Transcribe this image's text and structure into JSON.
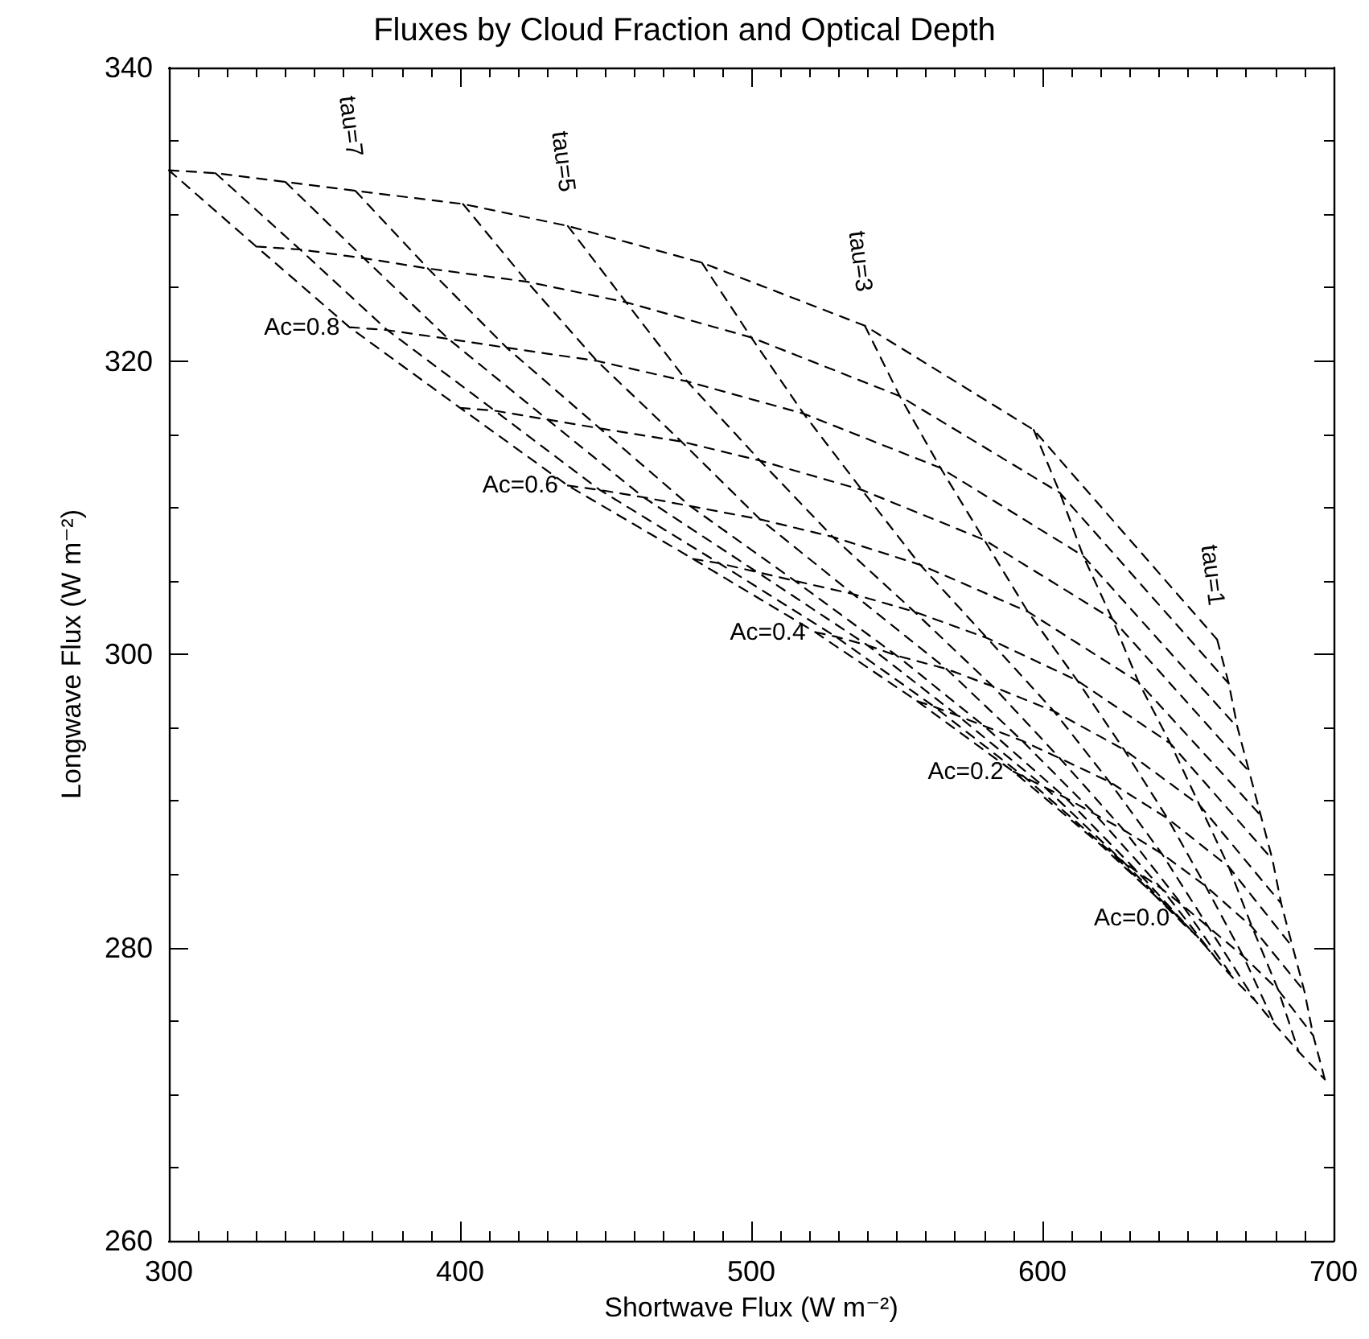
{
  "chart_data": {
    "type": "line",
    "title": "Fluxes by Cloud Fraction and Optical Depth",
    "xlabel": "Shortwave Flux (W m⁻²)",
    "ylabel": "Longwave Flux (W m⁻²)",
    "xlim": [
      300,
      700
    ],
    "xticks": [
      300,
      400,
      500,
      600,
      700
    ],
    "ylim": [
      260,
      340
    ],
    "yticks": [
      260,
      280,
      300,
      320,
      340
    ],
    "grid": false,
    "marker": "none",
    "line_style": "dashed",
    "annotations": [
      "tau=7",
      "tau=5",
      "tau=3",
      "tau=1",
      "Ac=0.8",
      "Ac=0.6",
      "Ac=0.4",
      "Ac=0.2",
      "Ac=0.0"
    ],
    "series": [
      {
        "color": "#000000",
        "x": [
          300,
          316,
          340,
          364,
          401,
          437,
          483,
          539,
          597,
          660,
          null,
          330,
          345,
          367,
          389,
          423,
          457,
          500,
          551,
          606,
          664,
          null,
          362,
          375,
          396,
          416,
          447,
          478,
          518,
          565,
          614,
          667,
          null,
          400,
          412,
          430,
          448,
          476,
          503,
          538,
          580,
          624,
          671,
          null,
          437,
          448,
          463,
          479,
          503,
          528,
          558,
          595,
          633,
          675,
          null,
          480,
          489,
          502,
          515,
          535,
          556,
          581,
          612,
          644,
          679,
          null,
          522,
          529,
          540,
          550,
          567,
          583,
          604,
          628,
          654,
          682,
          null,
          557,
          563,
          571,
          580,
          593,
          606,
          623,
          643,
          664,
          686,
          null,
          590,
          594,
          601,
          608,
          618,
          628,
          641,
          656,
          672,
          690,
          null,
          620,
          623,
          628,
          633,
          641,
          648,
          657,
          669,
          681,
          693,
          null,
          647,
          649,
          653,
          656,
          661,
          666,
          673,
          680,
          688,
          697,
          null,
          300,
          330,
          362,
          400,
          437,
          480,
          522,
          557,
          590,
          620,
          647,
          null,
          316,
          345,
          375,
          412,
          448,
          489,
          529,
          563,
          594,
          623,
          649,
          null,
          340,
          367,
          396,
          430,
          463,
          502,
          540,
          571,
          601,
          628,
          653,
          null,
          364,
          389,
          416,
          448,
          479,
          515,
          550,
          580,
          608,
          633,
          656,
          null,
          401,
          423,
          447,
          476,
          503,
          535,
          567,
          593,
          618,
          641,
          661,
          null,
          437,
          457,
          478,
          503,
          528,
          556,
          583,
          606,
          628,
          648,
          666,
          null,
          483,
          500,
          518,
          538,
          558,
          581,
          604,
          623,
          641,
          657,
          673,
          null,
          539,
          551,
          565,
          580,
          595,
          612,
          628,
          643,
          656,
          669,
          680,
          null,
          597,
          606,
          614,
          624,
          633,
          644,
          654,
          664,
          672,
          681,
          688,
          null,
          660,
          664,
          667,
          671,
          675,
          679,
          682,
          686,
          690,
          693,
          697
        ],
        "values": [
          333,
          332.8,
          332.2,
          331.6,
          330.7,
          329.2,
          326.7,
          322.4,
          315.3,
          301,
          null,
          327.8,
          327.6,
          327,
          326.3,
          325.4,
          324,
          321.6,
          317.6,
          311,
          298,
          null,
          322.3,
          322.1,
          321.5,
          320.9,
          320,
          318.6,
          316.4,
          312.7,
          306.7,
          295,
          null,
          316.8,
          316.6,
          316,
          315.4,
          314.5,
          313.2,
          311.2,
          307.8,
          302.4,
          292,
          null,
          311.5,
          311.2,
          310.7,
          310.1,
          309.2,
          308,
          306.1,
          302.9,
          298.1,
          289,
          null,
          306.5,
          306.2,
          305.6,
          305,
          304.1,
          302.9,
          301.1,
          298.2,
          293.9,
          286,
          null,
          301.5,
          301.2,
          300.6,
          299.9,
          299,
          297.8,
          296.1,
          293.5,
          289.7,
          283,
          null,
          296.8,
          296.4,
          295.8,
          295.1,
          294.1,
          292.9,
          291.3,
          288.8,
          285.5,
          280,
          null,
          292,
          291.6,
          290.9,
          290.2,
          289.1,
          288,
          286.4,
          284.2,
          281.4,
          277,
          null,
          287,
          286.6,
          285.8,
          285.1,
          284,
          282.9,
          281.4,
          279.4,
          277.1,
          274,
          null,
          282,
          281.5,
          280.8,
          280.1,
          278.9,
          277.8,
          276.4,
          274.7,
          272.9,
          271,
          null,
          333,
          327.8,
          322.3,
          316.8,
          311.5,
          306.5,
          301.5,
          296.8,
          292,
          287,
          282,
          null,
          332.8,
          327.6,
          322.1,
          316.6,
          311.2,
          306.2,
          301.2,
          296.4,
          291.6,
          286.6,
          281.5,
          null,
          332.2,
          327,
          321.5,
          316,
          310.7,
          305.6,
          300.6,
          295.8,
          290.9,
          285.8,
          280.8,
          null,
          331.6,
          326.3,
          320.9,
          315.4,
          310.1,
          305,
          299.9,
          295.1,
          290.2,
          285.1,
          280.1,
          null,
          330.7,
          325.4,
          320,
          314.5,
          309.2,
          304.1,
          299,
          294.1,
          289.1,
          284,
          278.9,
          null,
          329.2,
          324,
          318.6,
          313.2,
          308,
          302.9,
          297.8,
          292.9,
          288,
          282.9,
          277.8,
          null,
          326.7,
          321.6,
          316.4,
          311.2,
          306.1,
          301.1,
          296.1,
          291.3,
          286.4,
          281.4,
          276.4,
          null,
          322.4,
          317.6,
          312.7,
          307.8,
          302.9,
          298.2,
          293.5,
          288.8,
          284.2,
          279.4,
          274.7,
          null,
          315.3,
          311,
          306.7,
          302.4,
          298.1,
          293.9,
          289.7,
          285.5,
          281.4,
          277.1,
          272.9,
          null,
          301,
          298,
          295,
          292,
          289,
          286,
          283,
          280,
          277,
          274,
          271
        ]
      }
    ]
  }
}
